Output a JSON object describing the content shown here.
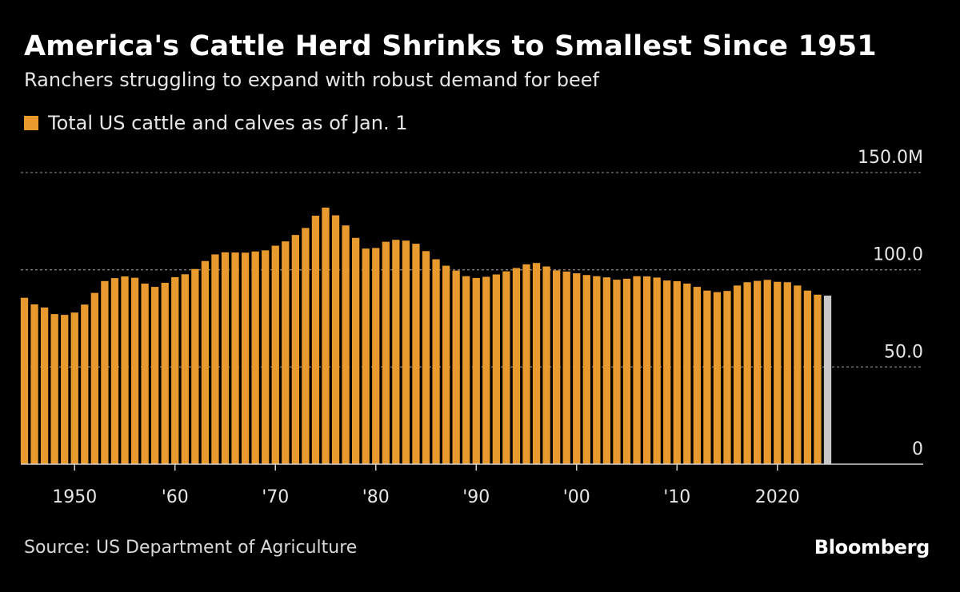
{
  "header": {
    "title": "America's Cattle Herd Shrinks to Smallest Since 1951",
    "subtitle": "Ranchers struggling to expand with robust demand for beef"
  },
  "legend": {
    "label": "Total US cattle and calves as of Jan. 1"
  },
  "footer": {
    "source": "Source: US Department of Agriculture",
    "brand": "Bloomberg"
  },
  "colors": {
    "background": "#000000",
    "bar": "#e89a2f",
    "bar_highlight": "#c8c8c8",
    "grid": "#7a7a7a",
    "axis": "#cfcfcf",
    "text": "#e6e6e6"
  },
  "chart_data": {
    "type": "bar",
    "title": "America's Cattle Herd Shrinks to Smallest Since 1951",
    "subtitle": "Ranchers struggling to expand with robust demand for beef",
    "ylabel": "",
    "xlabel": "",
    "ylim": [
      0,
      150
    ],
    "y_unit": "M",
    "y_ticks": [
      {
        "value": 150,
        "label": "150.0M"
      },
      {
        "value": 100,
        "label": "100.0"
      },
      {
        "value": 50,
        "label": "50.0"
      },
      {
        "value": 0,
        "label": "0"
      }
    ],
    "x_ticks": [
      {
        "year": 1950,
        "label": "1950"
      },
      {
        "year": 1960,
        "label": "'60"
      },
      {
        "year": 1970,
        "label": "'70"
      },
      {
        "year": 1980,
        "label": "'80"
      },
      {
        "year": 1990,
        "label": "'90"
      },
      {
        "year": 2000,
        "label": "'00"
      },
      {
        "year": 2010,
        "label": "'10"
      },
      {
        "year": 2020,
        "label": "2020"
      }
    ],
    "grid": true,
    "legend_position": "top-left",
    "highlight_last": true,
    "series": [
      {
        "name": "Total US cattle and calves as of Jan. 1",
        "x": [
          1945,
          1946,
          1947,
          1948,
          1949,
          1950,
          1951,
          1952,
          1953,
          1954,
          1955,
          1956,
          1957,
          1958,
          1959,
          1960,
          1961,
          1962,
          1963,
          1964,
          1965,
          1966,
          1967,
          1968,
          1969,
          1970,
          1971,
          1972,
          1973,
          1974,
          1975,
          1976,
          1977,
          1978,
          1979,
          1980,
          1981,
          1982,
          1983,
          1984,
          1985,
          1986,
          1987,
          1988,
          1989,
          1990,
          1991,
          1992,
          1993,
          1994,
          1995,
          1996,
          1997,
          1998,
          1999,
          2000,
          2001,
          2002,
          2003,
          2004,
          2005,
          2006,
          2007,
          2008,
          2009,
          2010,
          2011,
          2012,
          2013,
          2014,
          2015,
          2016,
          2017,
          2018,
          2019,
          2020,
          2021,
          2022,
          2023,
          2024,
          2025
        ],
        "values": [
          85.6,
          82.2,
          80.6,
          77.2,
          76.8,
          78.0,
          82.1,
          88.1,
          94.2,
          95.7,
          96.6,
          95.9,
          92.9,
          91.2,
          93.3,
          96.2,
          97.7,
          100.4,
          104.5,
          107.9,
          109.0,
          108.9,
          108.8,
          109.4,
          110.0,
          112.4,
          114.6,
          117.9,
          121.5,
          127.8,
          132.0,
          128.0,
          122.8,
          116.4,
          110.9,
          111.2,
          114.4,
          115.4,
          115.0,
          113.4,
          109.6,
          105.4,
          102.1,
          99.6,
          96.7,
          95.8,
          96.4,
          97.6,
          99.2,
          100.9,
          102.8,
          103.5,
          101.7,
          99.7,
          99.1,
          98.2,
          97.3,
          96.7,
          96.1,
          94.9,
          95.4,
          96.7,
          96.6,
          96.0,
          94.5,
          94.1,
          92.9,
          91.2,
          89.3,
          88.5,
          89.1,
          91.9,
          93.6,
          94.3,
          94.8,
          93.8,
          93.6,
          91.9,
          89.3,
          87.2,
          86.7
        ]
      }
    ]
  }
}
